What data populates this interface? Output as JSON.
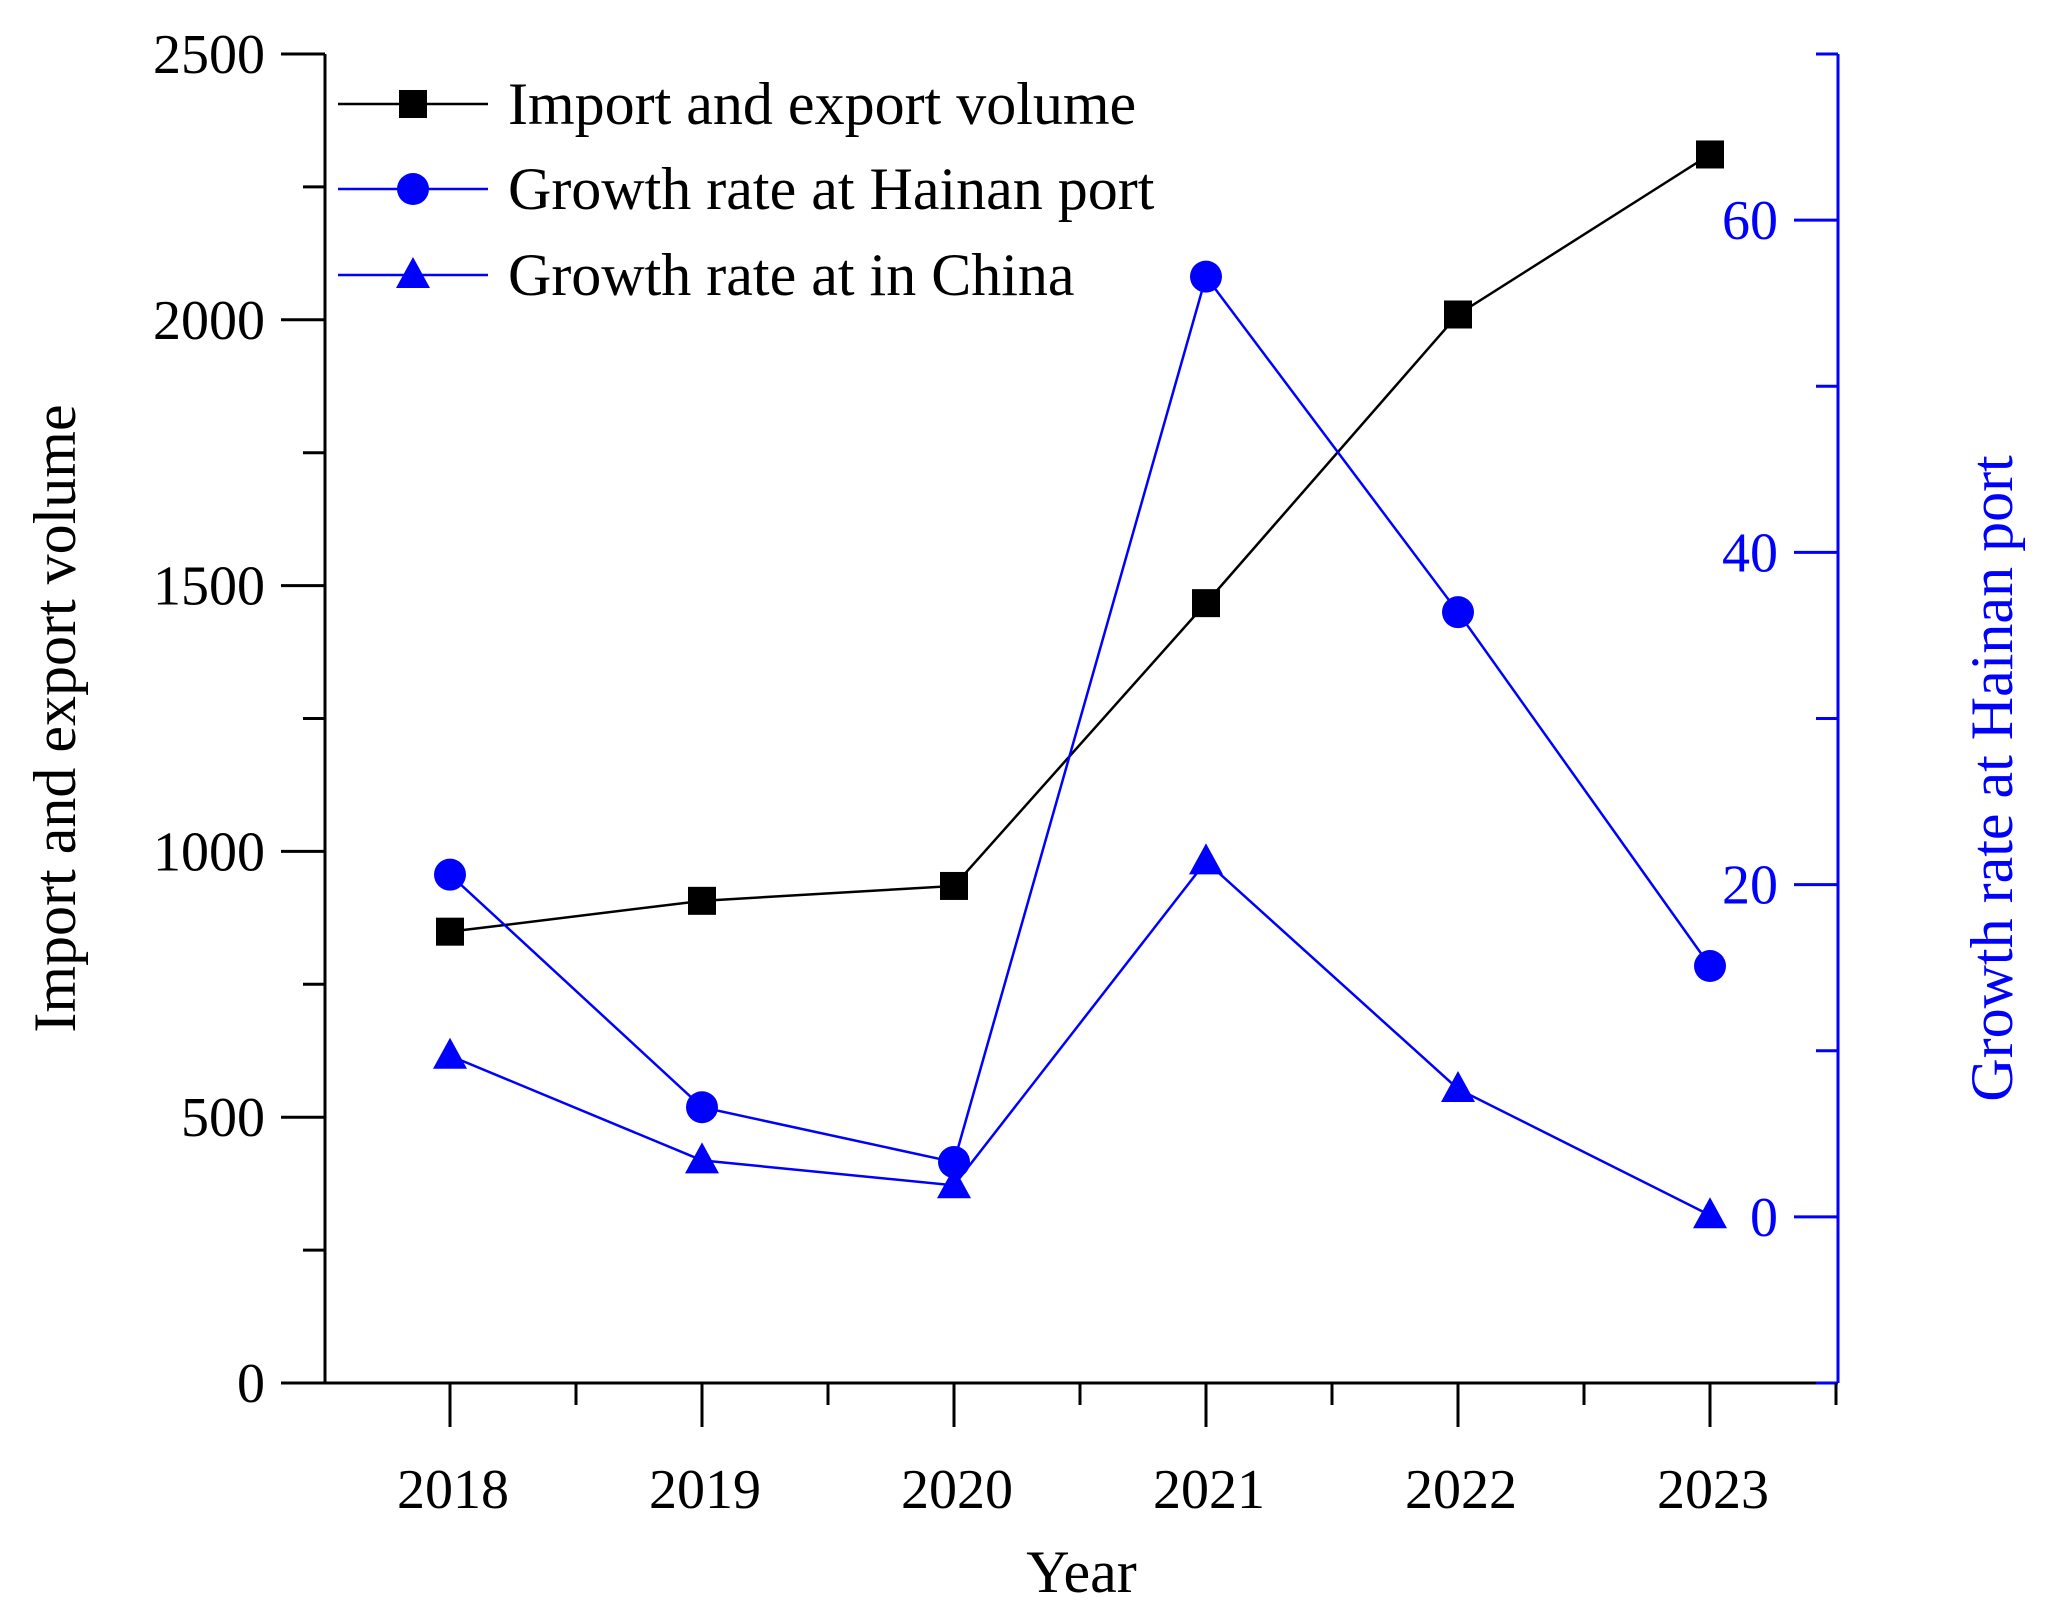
{
  "chart_data": {
    "type": "line",
    "x": [
      "2018",
      "2019",
      "2020",
      "2021",
      "2022",
      "2023"
    ],
    "xlabel": "Year",
    "ylabel": "Import and export volume",
    "y2label": "Growth rate at Hainan port",
    "ylim": [
      0,
      2500
    ],
    "y2lim": [
      -10,
      70
    ],
    "yticks": [
      "0",
      "500",
      "1000",
      "1500",
      "2000",
      "2500"
    ],
    "y2ticks": [
      "0",
      "20",
      "40",
      "60"
    ],
    "series": [
      {
        "name": "Import and export volume",
        "axis": "left",
        "marker": "square",
        "color": "#000000",
        "values": [
          849,
          907,
          935,
          1467,
          2010,
          2311
        ]
      },
      {
        "name": "Growth rate at Hainan port",
        "axis": "right",
        "marker": "circle",
        "color": "#0000ff",
        "values": [
          20.6,
          6.6,
          3.3,
          56.6,
          36.4,
          15.1
        ]
      },
      {
        "name": "Growth rate at in China",
        "axis": "right",
        "marker": "triangle",
        "color": "#0000ff",
        "values": [
          9.7,
          3.4,
          1.9,
          21.4,
          7.7,
          0.1
        ]
      }
    ],
    "legend_position": "top-left"
  }
}
